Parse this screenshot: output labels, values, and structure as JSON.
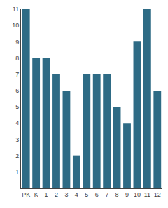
{
  "chart_data": {
    "type": "bar",
    "categories": [
      "PK",
      "K",
      "1",
      "2",
      "3",
      "4",
      "5",
      "6",
      "7",
      "8",
      "9",
      "10",
      "11",
      "12"
    ],
    "values": [
      11,
      8,
      8,
      7,
      6,
      2,
      7,
      7,
      7,
      5,
      4,
      9,
      11,
      6
    ],
    "color": "#2e6b85",
    "ylim": [
      0,
      11
    ],
    "yticks": [
      1,
      2,
      3,
      4,
      5,
      6,
      7,
      8,
      9,
      10,
      11
    ],
    "grid": false
  }
}
